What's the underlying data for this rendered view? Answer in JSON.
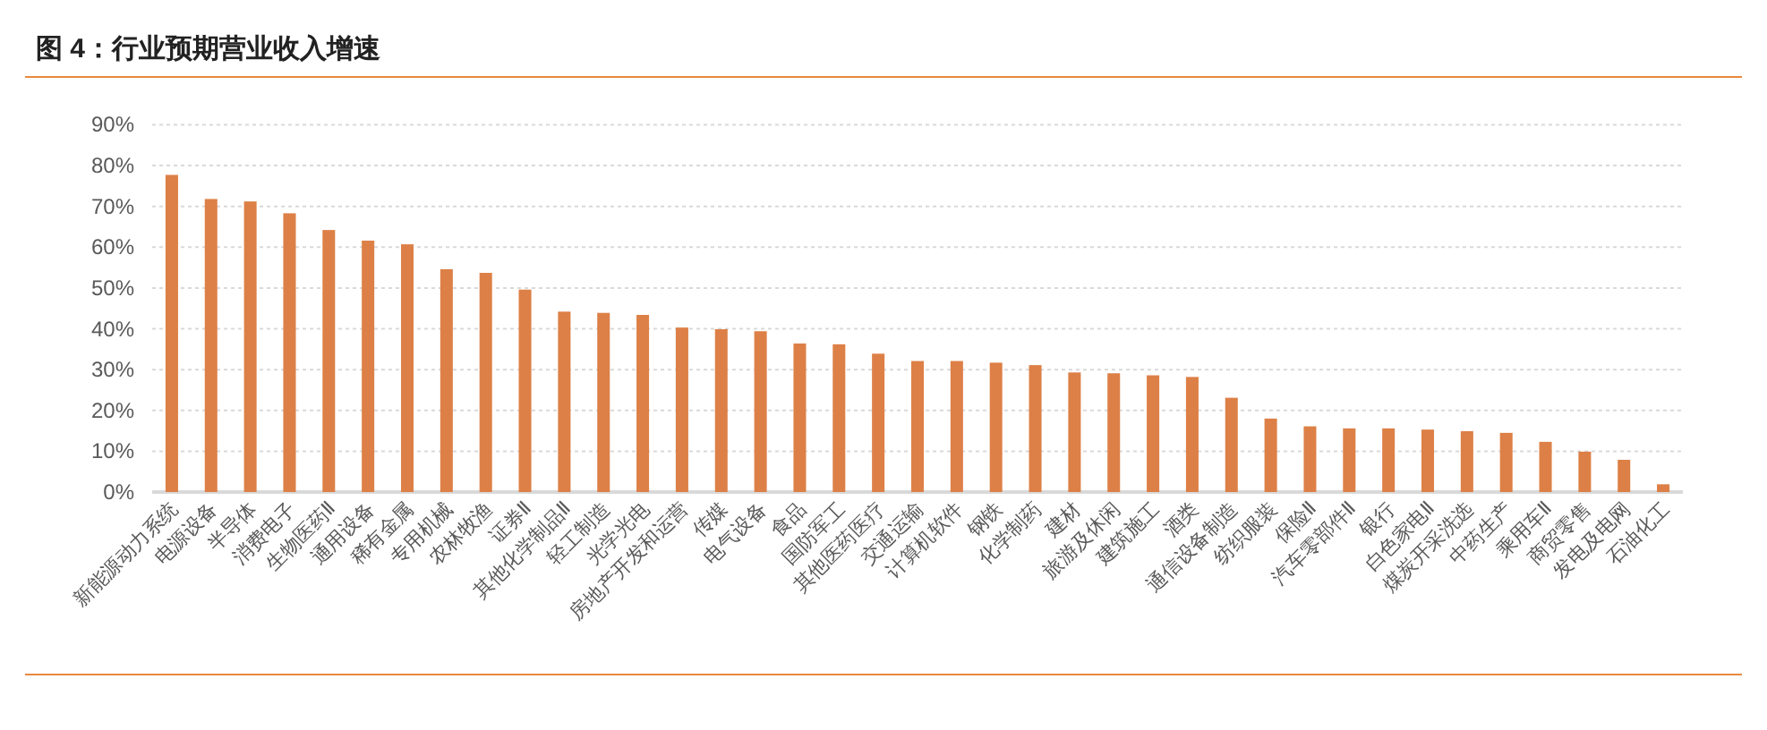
{
  "chart_data": {
    "type": "bar",
    "title": "图 4：行业预期营业收入增速",
    "categories": [
      "新能源动力系统",
      "电源设备",
      "半导体",
      "消费电子",
      "生物医药Ⅱ",
      "通用设备",
      "稀有金属",
      "专用机械",
      "农林牧渔",
      "证券Ⅱ",
      "其他化学制品Ⅱ",
      "轻工制造",
      "光学光电",
      "房地产开发和运营",
      "传媒",
      "电气设备",
      "食品",
      "国防军工",
      "其他医药医疗",
      "交通运输",
      "计算机软件",
      "钢铁",
      "化学制药",
      "建材",
      "旅游及休闲",
      "建筑施工",
      "酒类",
      "通信设备制造",
      "纺织服装",
      "保险Ⅱ",
      "汽车零部件Ⅱ",
      "银行",
      "白色家电Ⅱ",
      "煤炭开采洗选",
      "中药生产",
      "乘用车Ⅱ",
      "商贸零售",
      "发电及电网",
      "石油化工"
    ],
    "values": [
      77.7,
      71.8,
      71.2,
      68.3,
      64.2,
      61.6,
      60.7,
      54.6,
      53.7,
      49.6,
      44.2,
      43.9,
      43.4,
      40.3,
      39.9,
      39.4,
      36.4,
      36.2,
      33.9,
      32.1,
      32.1,
      31.7,
      31.1,
      29.3,
      29.1,
      28.6,
      28.2,
      23.1,
      18.0,
      16.1,
      15.6,
      15.6,
      15.3,
      14.9,
      14.5,
      12.3,
      9.9,
      7.9,
      1.9
    ],
    "color": "#dd8047",
    "ylim": [
      0,
      90
    ],
    "yticks": [
      {
        "value": 0,
        "label": "0%"
      },
      {
        "value": 10,
        "label": "10%"
      },
      {
        "value": 20,
        "label": "20%"
      },
      {
        "value": 30,
        "label": "30%"
      },
      {
        "value": 40,
        "label": "40%"
      },
      {
        "value": 50,
        "label": "50%"
      },
      {
        "value": 60,
        "label": "60%"
      },
      {
        "value": 70,
        "label": "70%"
      },
      {
        "value": 80,
        "label": "80%"
      },
      {
        "value": 90,
        "label": "90%"
      }
    ],
    "grid": "y"
  }
}
